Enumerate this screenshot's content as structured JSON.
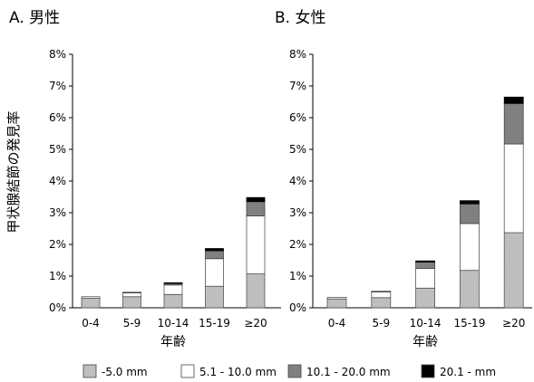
{
  "ylabel": "甲状腺結節の発見率",
  "legend": {
    "items": [
      {
        "label": "-5.0 mm",
        "color": "#c0c0c0"
      },
      {
        "label": "5.1 - 10.0 mm",
        "color": "#ffffff"
      },
      {
        "label": "10.1 - 20.0 mm",
        "color": "#808080"
      },
      {
        "label": "20.1 - mm",
        "color": "#000000"
      }
    ]
  },
  "chart_data": [
    {
      "type": "bar",
      "stacked": true,
      "title": "A. 男性",
      "xlabel": "年齢",
      "ylabel": "甲状腺結節の発見率",
      "categories": [
        "0-4",
        "5-9",
        "10-14",
        "15-19",
        "≥20"
      ],
      "ylim": [
        0,
        8
      ],
      "yticks": [
        "0%",
        "1%",
        "2%",
        "3%",
        "4%",
        "5%",
        "6%",
        "7%",
        "8%"
      ],
      "series": [
        {
          "name": "-5.0 mm",
          "values": [
            0.3,
            0.35,
            0.42,
            0.68,
            1.07
          ]
        },
        {
          "name": "5.1 - 10.0 mm",
          "values": [
            0.05,
            0.12,
            0.3,
            0.87,
            1.83
          ]
        },
        {
          "name": "10.1 - 20.0 mm",
          "values": [
            0.0,
            0.02,
            0.05,
            0.25,
            0.45
          ]
        },
        {
          "name": "20.1 - mm",
          "values": [
            0.0,
            0.0,
            0.02,
            0.07,
            0.13
          ]
        }
      ]
    },
    {
      "type": "bar",
      "stacked": true,
      "title": "B. 女性",
      "xlabel": "年齢",
      "ylabel": "",
      "categories": [
        "0-4",
        "5-9",
        "10-14",
        "15-19",
        "≥20"
      ],
      "ylim": [
        0,
        8
      ],
      "yticks": [
        "0%",
        "1%",
        "2%",
        "3%",
        "4%",
        "5%",
        "6%",
        "7%",
        "8%"
      ],
      "series": [
        {
          "name": "-5.0 mm",
          "values": [
            0.28,
            0.32,
            0.62,
            1.18,
            2.37
          ]
        },
        {
          "name": "5.1 - 10.0 mm",
          "values": [
            0.05,
            0.18,
            0.62,
            1.48,
            2.8
          ]
        },
        {
          "name": "10.1 - 20.0 mm",
          "values": [
            0.0,
            0.02,
            0.2,
            0.62,
            1.28
          ]
        },
        {
          "name": "20.1 - mm",
          "values": [
            0.0,
            0.0,
            0.04,
            0.1,
            0.2
          ]
        }
      ]
    }
  ]
}
